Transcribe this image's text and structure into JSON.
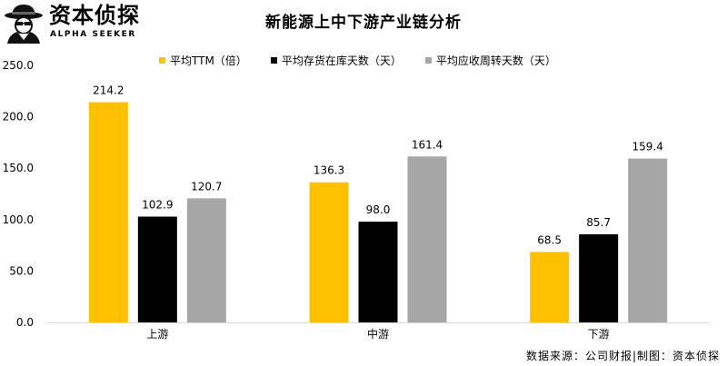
{
  "brand": {
    "name": "资本侦探",
    "tagline": "ALPHA SEEKER",
    "logo_icon": "detective-icon"
  },
  "source_note": "数据来源：公司财报|制图：资本侦探",
  "colors": {
    "series1": "#ffc000",
    "series2": "#000000",
    "series3": "#a6a6a6",
    "axis": "#d9d9d9"
  },
  "chart_data": {
    "type": "bar",
    "title": "新能源上中下游产业链分析",
    "categories": [
      "上游",
      "中游",
      "下游"
    ],
    "series": [
      {
        "name": "平均TTM（倍）",
        "values": [
          214.2,
          136.3,
          68.5
        ]
      },
      {
        "name": "平均存货在库天数（天）",
        "values": [
          102.9,
          98.0,
          85.7
        ]
      },
      {
        "name": "平均应收周转天数（天）",
        "values": [
          120.7,
          161.4,
          159.4
        ]
      }
    ],
    "yticks": [
      "0.0",
      "50.0",
      "100.0",
      "150.0",
      "200.0",
      "250.0"
    ],
    "ylim": [
      0,
      250
    ],
    "grid": false,
    "legend_position": "top",
    "xlabel": "",
    "ylabel": ""
  }
}
